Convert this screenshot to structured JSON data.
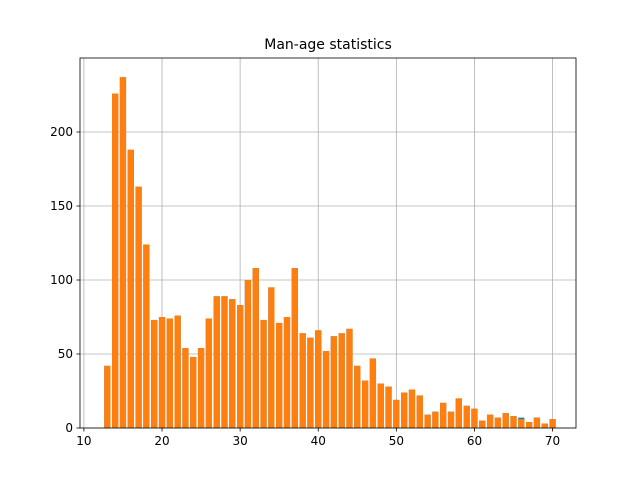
{
  "chart_data": {
    "type": "bar",
    "title": "Man-age statistics",
    "xlabel": "",
    "ylabel": "",
    "xlim": [
      9.5,
      73.0
    ],
    "ylim": [
      0,
      250
    ],
    "grid": true,
    "x_ticks": [
      10,
      20,
      30,
      40,
      50,
      60,
      70
    ],
    "y_ticks": [
      0,
      50,
      100,
      150,
      200
    ],
    "colors": {
      "bars": "#ff7f0e",
      "underlying": "#1f77b4",
      "grid": "#b0b0b0"
    },
    "x": [
      13,
      14,
      15,
      16,
      17,
      18,
      19,
      20,
      21,
      22,
      23,
      24,
      25,
      26,
      27,
      28,
      29,
      30,
      31,
      32,
      33,
      34,
      35,
      36,
      37,
      38,
      39,
      40,
      41,
      42,
      43,
      44,
      45,
      46,
      47,
      48,
      49,
      50,
      51,
      52,
      53,
      54,
      55,
      56,
      57,
      58,
      59,
      60,
      61,
      62,
      63,
      64,
      65,
      66,
      67,
      68,
      69,
      70
    ],
    "values": [
      42,
      226,
      237,
      188,
      163,
      124,
      73,
      75,
      74,
      76,
      54,
      48,
      54,
      74,
      89,
      89,
      87,
      83,
      100,
      108,
      73,
      95,
      71,
      75,
      108,
      64,
      61,
      66,
      52,
      62,
      64,
      67,
      42,
      32,
      47,
      30,
      28,
      19,
      24,
      26,
      22,
      9,
      11,
      17,
      11,
      20,
      15,
      13,
      5,
      9,
      7,
      10,
      8,
      6,
      4,
      7,
      3,
      6
    ],
    "underlying_values": [
      42,
      226,
      237,
      188,
      163,
      124,
      73,
      75,
      74,
      76,
      54,
      48,
      54,
      74,
      89,
      89,
      87,
      83,
      100,
      108,
      73,
      95,
      71,
      75,
      108,
      64,
      61,
      66,
      52,
      62,
      64,
      67,
      42,
      32,
      47,
      30,
      28,
      19,
      24,
      26,
      22,
      9,
      11,
      17,
      11,
      20,
      15,
      13,
      5,
      9,
      7,
      10,
      8,
      7,
      4,
      7,
      3,
      6
    ]
  }
}
